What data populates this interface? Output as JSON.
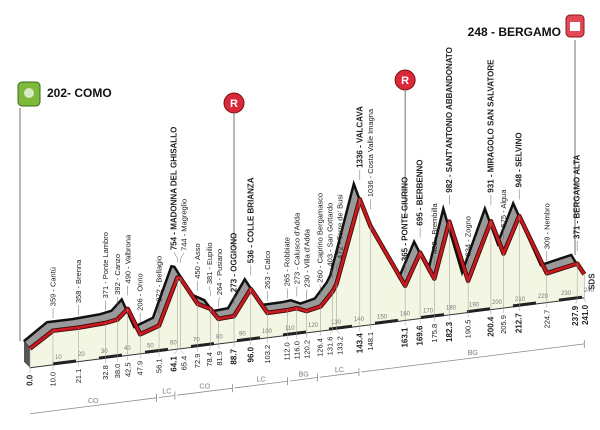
{
  "chart_data": {
    "type": "area",
    "title": "",
    "xlabel": "",
    "ylabel": "",
    "x_unit": "km",
    "y_unit": "m",
    "xlim": [
      0,
      241
    ],
    "x_ticks": [
      10,
      20,
      30,
      40,
      50,
      60,
      70,
      80,
      90,
      100,
      110,
      120,
      130,
      140,
      150,
      160,
      170,
      180,
      190,
      200,
      210,
      220,
      230,
      240
    ],
    "colors": {
      "line": "#c8191e",
      "back_fill": "#9a9a9a",
      "ground_fill": "#f4f6e4",
      "marker_red": "#d8283a",
      "start_green": "#7cb83a"
    },
    "start": {
      "label": "202- COMO",
      "km": 0.0,
      "elevation": 202,
      "icon": "start-flag-icon"
    },
    "finish": {
      "label": "248 - BERGAMO",
      "km": 241.0,
      "elevation": 248,
      "icon": "finish-icon"
    },
    "feed_zones": [
      {
        "km": 88.7,
        "label": "R"
      },
      {
        "km": 163.1,
        "label": "R"
      }
    ],
    "points": [
      {
        "km": 0.0,
        "km_label": "0.0",
        "elevation": 202,
        "label": "",
        "bold": true
      },
      {
        "km": 10.0,
        "km_label": "10.0",
        "elevation": 359,
        "label": "359 - Cantù",
        "bold": false
      },
      {
        "km": 21.1,
        "km_label": "21.1",
        "elevation": 358,
        "label": "358 - Brenna",
        "bold": false
      },
      {
        "km": 32.8,
        "km_label": "32.8",
        "elevation": 371,
        "label": "371 - Ponte Lambro",
        "bold": false
      },
      {
        "km": 38.0,
        "km_label": "38.0",
        "elevation": 392,
        "label": "392 - Canzo",
        "bold": false
      },
      {
        "km": 42.5,
        "km_label": "42.5",
        "elevation": 490,
        "label": "490 - Valbrona",
        "bold": false
      },
      {
        "km": 47.9,
        "km_label": "47.9",
        "elevation": 206,
        "label": "206 - Onno",
        "bold": false
      },
      {
        "km": 56.1,
        "km_label": "56.1",
        "elevation": 272,
        "label": "272 - Bellagio",
        "bold": false
      },
      {
        "km": 64.1,
        "km_label": "64.1",
        "elevation": 754,
        "label": "754 - MADONNA DEL GHISALLO",
        "bold": true
      },
      {
        "km": 65.4,
        "km_label": "65.4",
        "elevation": 744,
        "label": "744 - Magreglio",
        "bold": false
      },
      {
        "km": 72.9,
        "km_label": "72.9",
        "elevation": 450,
        "label": "450 - Asso",
        "bold": false
      },
      {
        "km": 78.4,
        "km_label": "78.4",
        "elevation": 381,
        "label": "381 - Eupilio",
        "bold": false
      },
      {
        "km": 81.9,
        "km_label": "81.9",
        "elevation": 264,
        "label": "264 - Pusiano",
        "bold": false
      },
      {
        "km": 88.7,
        "km_label": "88.7",
        "elevation": 273,
        "label": "273 - OGGIONO",
        "bold": true
      },
      {
        "km": 96.0,
        "km_label": "96.0",
        "elevation": 536,
        "label": "536 - COLLE BRIANZA",
        "bold": true
      },
      {
        "km": 103.2,
        "km_label": "103.2",
        "elevation": 263,
        "label": "263 - Calco",
        "bold": false
      },
      {
        "km": 112.0,
        "km_label": "112.0",
        "elevation": 265,
        "label": "265 - Robbiate",
        "bold": false
      },
      {
        "km": 116.0,
        "km_label": "116.0",
        "elevation": 273,
        "label": "273 - Calusco d'Adda",
        "bold": false
      },
      {
        "km": 120.2,
        "km_label": "120.2",
        "elevation": 230,
        "label": "230 - Villa d'Adda",
        "bold": false
      },
      {
        "km": 126.4,
        "km_label": "126.4",
        "elevation": 260,
        "label": "260 - Caprino Bergamasco",
        "bold": false
      },
      {
        "km": 131.6,
        "km_label": "131.6",
        "elevation": 403,
        "label": "403 - San Gottardo",
        "bold": false
      },
      {
        "km": 133.2,
        "km_label": "133.2",
        "elevation": 472,
        "label": "472 - Torre de' Busi",
        "bold": false
      },
      {
        "km": 143.4,
        "km_label": "143.4",
        "elevation": 1336,
        "label": "1336 - VALCAVA",
        "bold": true
      },
      {
        "km": 148.1,
        "km_label": "148.1",
        "elevation": 1036,
        "label": "1036 - Costa Valle Imagna",
        "bold": false
      },
      {
        "km": 163.1,
        "km_label": "163.1",
        "elevation": 365,
        "label": "365 - PONTE GIURINO",
        "bold": true
      },
      {
        "km": 169.6,
        "km_label": "169.6",
        "elevation": 695,
        "label": "695 - BERBENNO",
        "bold": true
      },
      {
        "km": 175.8,
        "km_label": "175.8",
        "elevation": 402,
        "label": "402 - Brembilla",
        "bold": false
      },
      {
        "km": 182.3,
        "km_label": "182.3",
        "elevation": 982,
        "label": "982 - SANT'ANTONIO ABBANDONATO",
        "bold": true
      },
      {
        "km": 190.5,
        "km_label": "190.5",
        "elevation": 334,
        "label": "334 - Zogno",
        "bold": false
      },
      {
        "km": 200.4,
        "km_label": "200.4",
        "elevation": 931,
        "label": "931 - MIRAGOLO SAN SALVATORE",
        "bold": true
      },
      {
        "km": 205.9,
        "km_label": "205.9",
        "elevation": 575,
        "label": "575 - Algua",
        "bold": false
      },
      {
        "km": 212.7,
        "km_label": "212.7",
        "elevation": 948,
        "label": "948 - SELVINO",
        "bold": true
      },
      {
        "km": 224.7,
        "km_label": "224.7",
        "elevation": 309,
        "label": "309 - Nembro",
        "bold": false
      },
      {
        "km": 237.9,
        "km_label": "237.9",
        "elevation": 371,
        "label": "371 - BERGAMO ALTA",
        "bold": true
      },
      {
        "km": 241.0,
        "km_label": "241.0",
        "elevation": 248,
        "label": "",
        "bold": true
      }
    ],
    "provinces": [
      {
        "code": "CO",
        "from": 0,
        "to": 55
      },
      {
        "code": "LC",
        "from": 56,
        "to": 63
      },
      {
        "code": "CO",
        "from": 64,
        "to": 88
      },
      {
        "code": "LC",
        "from": 89,
        "to": 112
      },
      {
        "code": "BG",
        "from": 113,
        "to": 125
      },
      {
        "code": "LC",
        "from": 126,
        "to": 143
      },
      {
        "code": "BG",
        "from": 144,
        "to": 241
      }
    ],
    "sponsor_mark": "SDS"
  }
}
